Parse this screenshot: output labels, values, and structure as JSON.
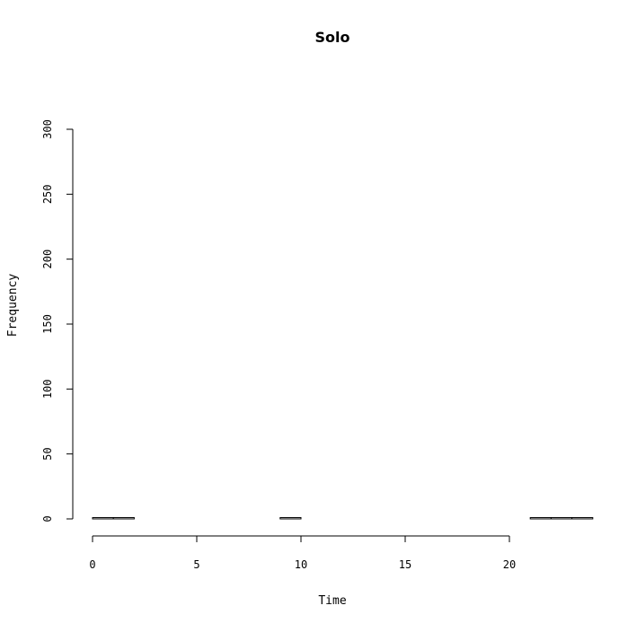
{
  "chart_data": {
    "type": "bar",
    "title": "Solo",
    "xlabel": "Time",
    "ylabel": "Frequency",
    "xlim": [
      0,
      24
    ],
    "ylim": [
      0,
      300
    ],
    "x_ticks": [
      0,
      5,
      10,
      15,
      20
    ],
    "y_ticks": [
      0,
      50,
      100,
      150,
      200,
      250,
      300
    ],
    "bins": [
      {
        "x0": 0,
        "x1": 1,
        "value": 1
      },
      {
        "x0": 1,
        "x1": 2,
        "value": 1
      },
      {
        "x0": 2,
        "x1": 3,
        "value": 0
      },
      {
        "x0": 3,
        "x1": 4,
        "value": 0
      },
      {
        "x0": 4,
        "x1": 5,
        "value": 0
      },
      {
        "x0": 5,
        "x1": 6,
        "value": 0
      },
      {
        "x0": 6,
        "x1": 7,
        "value": 0
      },
      {
        "x0": 7,
        "x1": 8,
        "value": 0
      },
      {
        "x0": 8,
        "x1": 9,
        "value": 0
      },
      {
        "x0": 9,
        "x1": 10,
        "value": 1
      },
      {
        "x0": 10,
        "x1": 11,
        "value": 0
      },
      {
        "x0": 11,
        "x1": 12,
        "value": 0
      },
      {
        "x0": 12,
        "x1": 13,
        "value": 0
      },
      {
        "x0": 13,
        "x1": 14,
        "value": 0
      },
      {
        "x0": 14,
        "x1": 15,
        "value": 0
      },
      {
        "x0": 15,
        "x1": 16,
        "value": 0
      },
      {
        "x0": 16,
        "x1": 17,
        "value": 0
      },
      {
        "x0": 17,
        "x1": 18,
        "value": 0
      },
      {
        "x0": 18,
        "x1": 19,
        "value": 0
      },
      {
        "x0": 19,
        "x1": 20,
        "value": 0
      },
      {
        "x0": 20,
        "x1": 21,
        "value": 0
      },
      {
        "x0": 21,
        "x1": 22,
        "value": 1
      },
      {
        "x0": 22,
        "x1": 23,
        "value": 1
      },
      {
        "x0": 23,
        "x1": 24,
        "value": 1
      }
    ],
    "grid": false,
    "bar_fill": "#ffffff",
    "bar_stroke": "#000000"
  }
}
